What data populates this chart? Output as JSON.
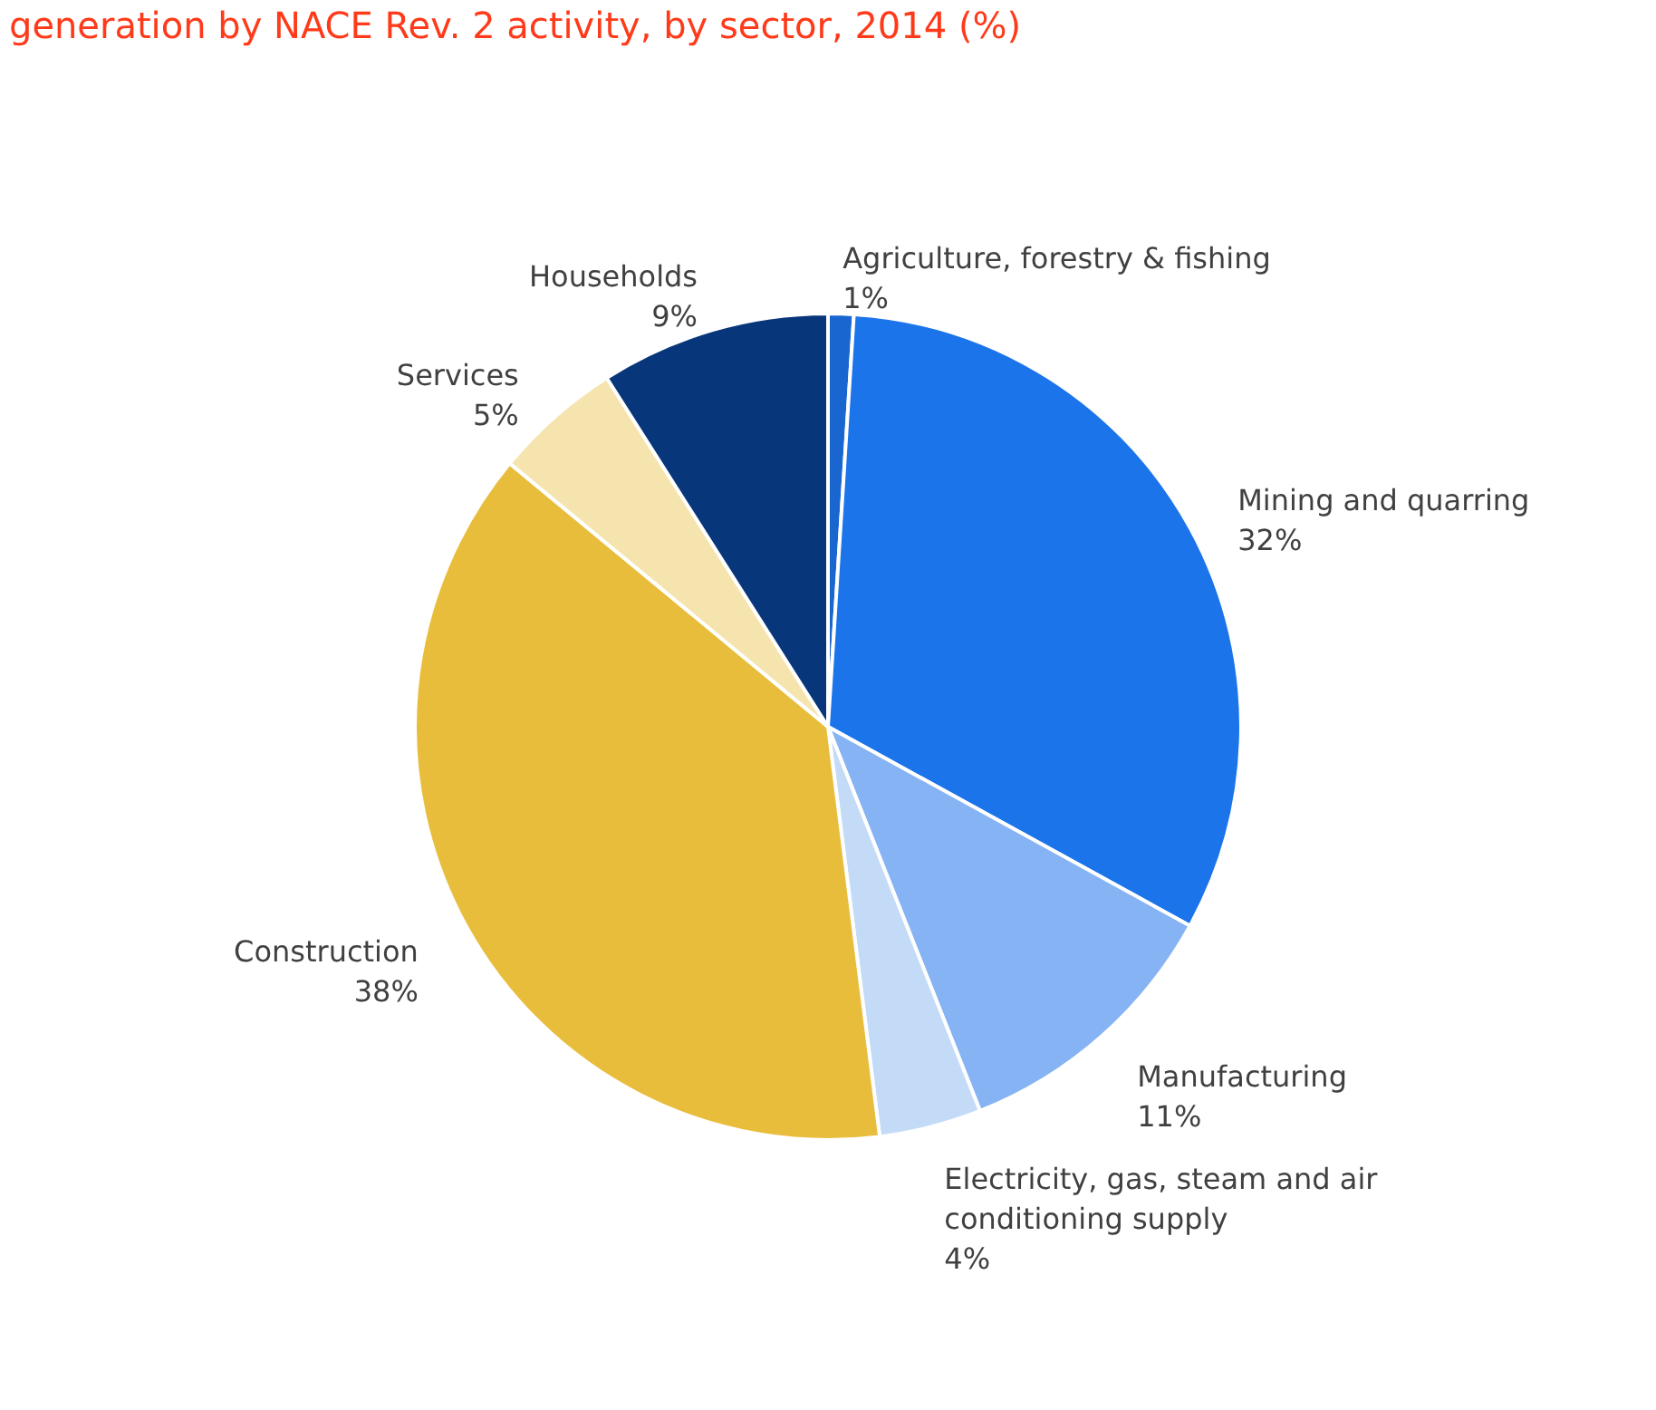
{
  "chart_data": {
    "type": "pie",
    "title": "generation by NACE Rev. 2 activity, by sector, 2014 (%)",
    "categories": [
      "Agriculture, forestry & fishing",
      "Mining and quarring",
      "Manufacturing",
      "Electricity, gas, steam and air conditioning supply",
      "Construction",
      "Services",
      "Households"
    ],
    "values": [
      1,
      32,
      11,
      4,
      38,
      5,
      9
    ],
    "value_labels": [
      "1%",
      "32%",
      "11%",
      "4%",
      "38%",
      "5%",
      "9%"
    ],
    "colors": [
      "#1a66d0",
      "#1b74ea",
      "#86b3f4",
      "#c4dbf8",
      "#e9bd3c",
      "#f5e4ae",
      "#08367a"
    ],
    "legend": false
  }
}
